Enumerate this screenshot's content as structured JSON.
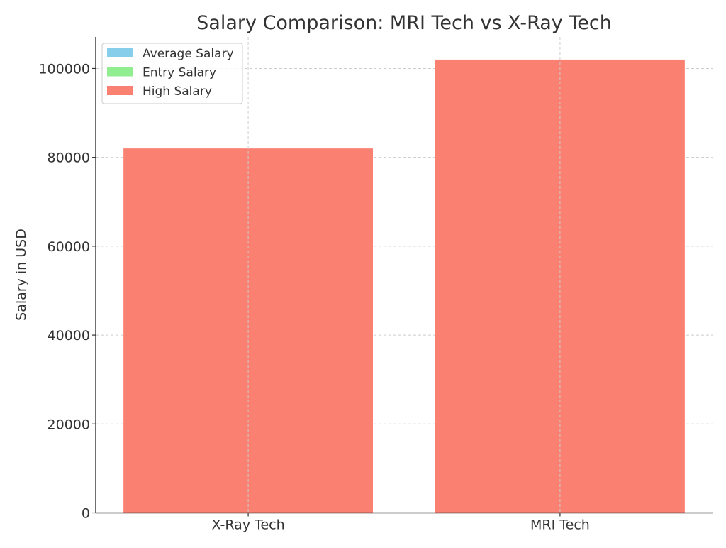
{
  "chart_data": {
    "type": "bar",
    "title": "Salary Comparison: MRI Tech vs X-Ray Tech",
    "xlabel": "",
    "ylabel": "Salary in USD",
    "categories": [
      "X-Ray Tech",
      "MRI Tech"
    ],
    "series": [
      {
        "name": "Average Salary",
        "color": "#87CEEB",
        "values": [
          null,
          null
        ]
      },
      {
        "name": "Entry Salary",
        "color": "#90EE90",
        "values": [
          null,
          null
        ]
      },
      {
        "name": "High Salary",
        "color": "#FA8072",
        "values": [
          82000,
          102000
        ]
      }
    ],
    "ylim": [
      0,
      107100
    ],
    "yticks": [
      0,
      20000,
      40000,
      60000,
      80000,
      100000
    ],
    "ytick_labels": [
      "0",
      "20000",
      "40000",
      "60000",
      "80000",
      "100000"
    ],
    "grid": true,
    "legend_position": "top-left"
  }
}
